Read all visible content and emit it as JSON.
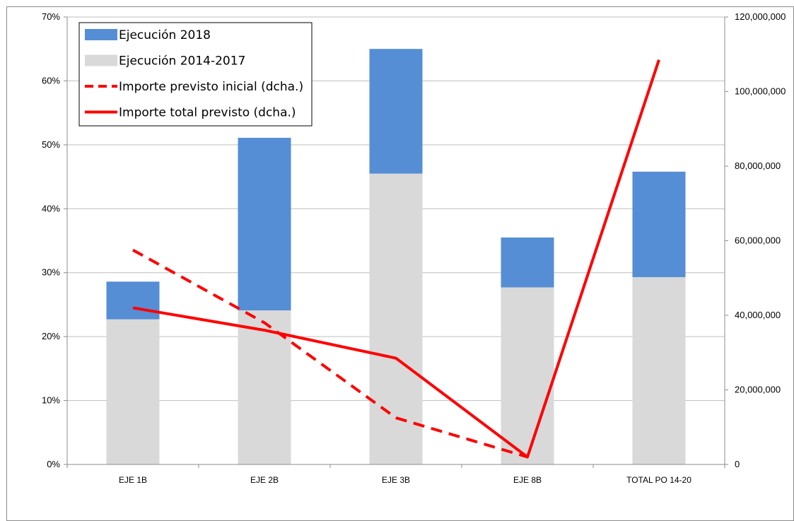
{
  "chart_data": {
    "type": "bar",
    "stacked": true,
    "categories": [
      "EJE 1B",
      "EJE 2B",
      "EJE 3B",
      "EJE 8B",
      "TOTAL PO 14-20"
    ],
    "series": [
      {
        "name": "Ejecución 2014-2017",
        "kind": "bar",
        "axis": "left",
        "color": "#d9d9d9",
        "values": [
          22.7,
          24.1,
          45.5,
          27.7,
          29.3
        ]
      },
      {
        "name": "Ejecución 2018",
        "kind": "bar",
        "axis": "left",
        "color": "#558ed5",
        "values": [
          5.9,
          27.0,
          19.5,
          7.8,
          16.5
        ]
      },
      {
        "name": "Importe previsto inicial (dcha.)",
        "kind": "line",
        "style": "dashed",
        "axis": "right",
        "color": "#ff0000",
        "values": [
          57500000,
          38000000,
          12500000,
          2000000,
          null
        ]
      },
      {
        "name": "Importe total previsto (dcha.)",
        "kind": "line",
        "style": "solid",
        "axis": "right",
        "color": "#ff0000",
        "values": [
          42000000,
          36000000,
          28500000,
          2000000,
          108500000
        ]
      }
    ],
    "legend_order": [
      "Ejecución 2018",
      "Ejecución 2014-2017",
      "Importe previsto inicial (dcha.)",
      "Importe total previsto (dcha.)"
    ],
    "left_axis": {
      "ylim": [
        0,
        70
      ],
      "ticks": [
        0,
        10,
        20,
        30,
        40,
        50,
        60,
        70
      ],
      "tick_labels": [
        "0%",
        "10%",
        "20%",
        "30%",
        "40%",
        "50%",
        "60%",
        "70%"
      ]
    },
    "right_axis": {
      "ylim": [
        0,
        120000000
      ],
      "ticks": [
        0,
        20000000,
        40000000,
        60000000,
        80000000,
        100000000,
        120000000
      ],
      "tick_labels": [
        "0",
        "20,000,000",
        "40,000,000",
        "60,000,000",
        "80,000,000",
        "100,000,000",
        "120,000,000"
      ]
    },
    "grid": true,
    "legend_position": "top-left"
  }
}
